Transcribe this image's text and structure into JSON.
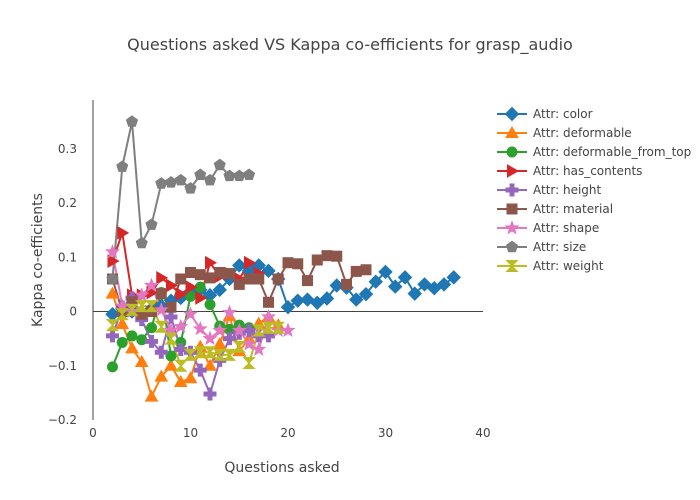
{
  "chart_data": {
    "type": "line",
    "title": "Questions asked VS Kappa co-efficients for grasp_audio",
    "xlabel": "Questions asked",
    "ylabel": "Kappa co-efficients",
    "xlim": [
      0,
      40
    ],
    "ylim": [
      -0.2,
      0.39
    ],
    "xticks": [
      0,
      10,
      20,
      30,
      40
    ],
    "yticks": [
      -0.2,
      -0.1,
      0,
      0.1,
      0.2,
      0.3
    ],
    "ytick_labels": [
      "−0.2",
      "−0.1",
      "0",
      "0.1",
      "0.2",
      "0.3"
    ],
    "grid": false,
    "legend_position": "right",
    "series": [
      {
        "name": "Attr: color",
        "color": "#1f77b4",
        "marker": "diamond",
        "x": [
          2,
          3,
          4,
          5,
          6,
          7,
          8,
          9,
          10,
          11,
          12,
          13,
          14,
          15,
          16,
          17,
          18,
          19,
          20,
          21,
          22,
          23,
          24,
          25,
          26,
          27,
          28,
          29,
          30,
          31,
          32,
          33,
          34,
          35,
          36,
          37
        ],
        "y": [
          -0.005,
          0.005,
          0.0,
          -0.005,
          0.005,
          0.01,
          0.02,
          0.025,
          0.035,
          0.04,
          0.03,
          0.04,
          0.06,
          0.085,
          0.075,
          0.085,
          0.075,
          0.06,
          0.008,
          0.02,
          0.022,
          0.016,
          0.024,
          0.048,
          0.044,
          0.022,
          0.032,
          0.055,
          0.073,
          0.046,
          0.063,
          0.033,
          0.05,
          0.043,
          0.05,
          0.063
        ]
      },
      {
        "name": "Attr: deformable",
        "color": "#ff7f0e",
        "marker": "triangle-up",
        "x": [
          2,
          3,
          4,
          5,
          6,
          7,
          8,
          9,
          10,
          11,
          12,
          13,
          14,
          15,
          16,
          17,
          18,
          19
        ],
        "y": [
          0.033,
          -0.023,
          -0.068,
          -0.093,
          -0.157,
          -0.12,
          -0.1,
          -0.13,
          -0.123,
          -0.065,
          -0.1,
          -0.06,
          -0.008,
          -0.073,
          -0.05,
          -0.022,
          -0.01,
          -0.025
        ]
      },
      {
        "name": "Attr: deformable_from_top",
        "color": "#2ca02c",
        "marker": "circle",
        "x": [
          2,
          3,
          4,
          5,
          6,
          7,
          8,
          9,
          10,
          11,
          12,
          13,
          14,
          15,
          16
        ],
        "y": [
          -0.102,
          -0.057,
          -0.045,
          -0.052,
          -0.03,
          0.035,
          -0.082,
          -0.057,
          0.028,
          0.045,
          0.013,
          -0.027,
          -0.033,
          -0.025,
          -0.03
        ]
      },
      {
        "name": "Attr: has_contents",
        "color": "#d62728",
        "marker": "triangle-right",
        "x": [
          2,
          3,
          4,
          5,
          6,
          7,
          8,
          9,
          10,
          11,
          12,
          13,
          14,
          15,
          16,
          17
        ],
        "y": [
          0.093,
          0.145,
          0.03,
          0.03,
          0.035,
          0.062,
          0.048,
          0.032,
          0.045,
          0.025,
          0.09,
          0.065,
          0.07,
          0.06,
          0.09,
          0.07
        ]
      },
      {
        "name": "Attr: height",
        "color": "#9467bd",
        "marker": "cross",
        "x": [
          2,
          3,
          4,
          5,
          6,
          7,
          8,
          9,
          10,
          11,
          12,
          13,
          14,
          15,
          16,
          17,
          18
        ],
        "y": [
          -0.045,
          0.008,
          0.025,
          -0.015,
          -0.055,
          -0.075,
          -0.01,
          -0.07,
          -0.075,
          -0.108,
          -0.152,
          -0.09,
          -0.05,
          -0.04,
          -0.035,
          -0.045,
          -0.045
        ]
      },
      {
        "name": "Attr: material",
        "color": "#8c564b",
        "marker": "square",
        "x": [
          2,
          3,
          4,
          5,
          6,
          7,
          8,
          9,
          10,
          11,
          12,
          13,
          14,
          15,
          16,
          17,
          18,
          19,
          20,
          21,
          22,
          23,
          24,
          25,
          26,
          27,
          28
        ],
        "y": [
          0.06,
          0.0,
          0.018,
          -0.005,
          0.0,
          0.033,
          0.008,
          0.06,
          0.072,
          0.068,
          0.062,
          0.072,
          0.07,
          0.05,
          0.06,
          0.06,
          0.017,
          0.06,
          0.09,
          0.088,
          0.057,
          0.095,
          0.103,
          0.102,
          0.05,
          0.074,
          0.077
        ]
      },
      {
        "name": "Attr: shape",
        "color": "#e377c2",
        "marker": "star",
        "x": [
          2,
          3,
          4,
          5,
          6,
          7,
          8,
          9,
          10,
          11,
          12,
          13,
          14,
          15,
          16,
          17,
          18,
          19,
          20
        ],
        "y": [
          0.11,
          0.01,
          0.0,
          0.03,
          0.048,
          0.003,
          -0.035,
          -0.028,
          -0.005,
          -0.032,
          -0.05,
          -0.035,
          -0.002,
          -0.035,
          -0.06,
          -0.07,
          -0.01,
          -0.035,
          -0.035
        ]
      },
      {
        "name": "Attr: size",
        "color": "#7f7f7f",
        "marker": "pentagon",
        "x": [
          2,
          3,
          4,
          5,
          6,
          7,
          8,
          9,
          10,
          11,
          12,
          13,
          14,
          15,
          16
        ],
        "y": [
          0.06,
          0.267,
          0.35,
          0.126,
          0.16,
          0.236,
          0.238,
          0.242,
          0.227,
          0.252,
          0.242,
          0.27,
          0.25,
          0.25,
          0.252
        ]
      },
      {
        "name": "Attr: weight",
        "color": "#bcbd22",
        "marker": "hourglass",
        "x": [
          2,
          3,
          4,
          5,
          6,
          7,
          8,
          9,
          10,
          11,
          12,
          13,
          14,
          15,
          16,
          17,
          18,
          19
        ],
        "y": [
          -0.025,
          -0.005,
          0.003,
          0.01,
          0.01,
          -0.028,
          -0.05,
          -0.1,
          -0.08,
          -0.075,
          -0.075,
          -0.08,
          -0.08,
          -0.065,
          -0.095,
          -0.035,
          -0.03,
          -0.03
        ]
      }
    ]
  }
}
